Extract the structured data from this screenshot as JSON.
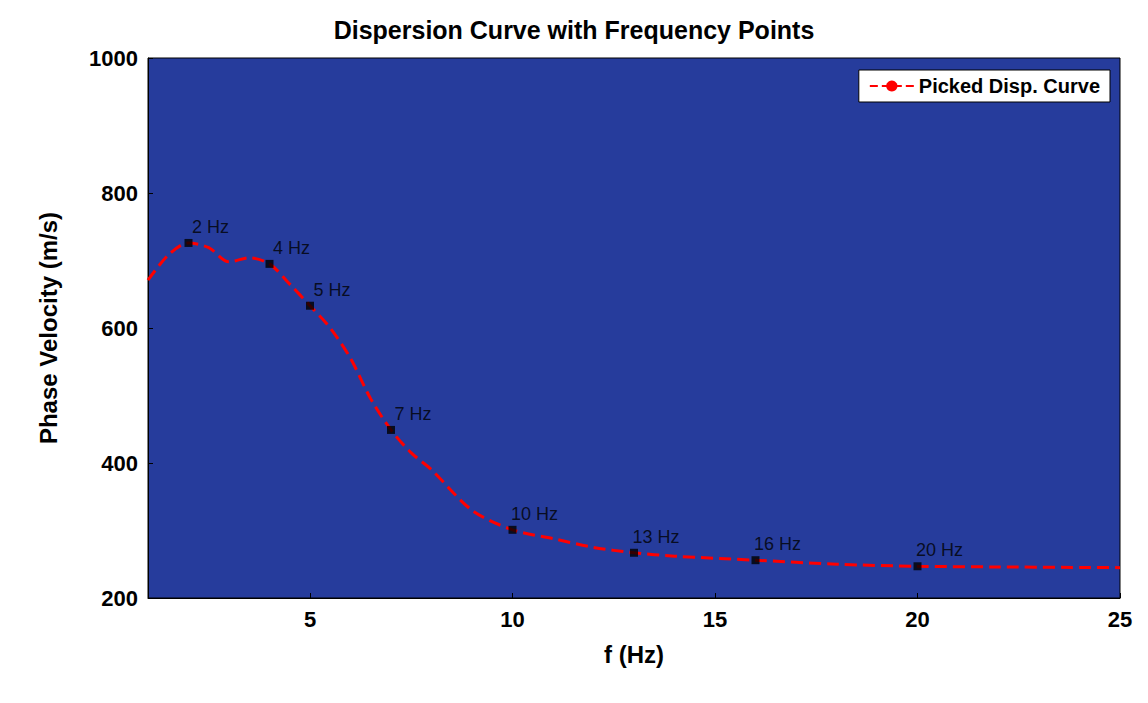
{
  "chart_data": {
    "type": "line",
    "title": "Dispersion Curve with Frequency Points",
    "x_label": "f (Hz)",
    "y_label": "Phase Velocity (m/s)",
    "xlim": [
      1,
      25
    ],
    "xticks": [
      5,
      10,
      15,
      20,
      25
    ],
    "ylim": [
      200,
      1000
    ],
    "yticks": [
      200,
      400,
      600,
      800,
      1000
    ],
    "grid": false,
    "legend": "top-right",
    "series": [
      {
        "name": "Picked Disp. Curve",
        "type": "line",
        "color": "#ff0000",
        "line_style": "dashed",
        "x": [
          1,
          1.5,
          2,
          2.5,
          3,
          3.5,
          4,
          4.5,
          5,
          5.5,
          6,
          6.5,
          7,
          7.5,
          8,
          9,
          10,
          11,
          12,
          13,
          14,
          16,
          18,
          20,
          22,
          25
        ],
        "values": [
          671,
          708,
          726,
          719,
          698,
          704,
          695,
          665,
          633,
          600,
          555,
          495,
          449,
          415,
          390,
          330,
          301,
          288,
          275,
          267,
          262,
          256,
          250,
          247,
          246,
          245
        ]
      },
      {
        "type": "scatter",
        "marker": "square",
        "color": "#000000",
        "x": [
          2,
          4,
          5,
          7,
          10,
          13,
          16,
          20
        ],
        "values": [
          726,
          695,
          633,
          449,
          301,
          267,
          256,
          247
        ],
        "labels": [
          "2 Hz",
          "4 Hz",
          "5 Hz",
          "7 Hz",
          "10 Hz",
          "13 Hz",
          "16 Hz",
          "20 Hz"
        ]
      }
    ]
  }
}
